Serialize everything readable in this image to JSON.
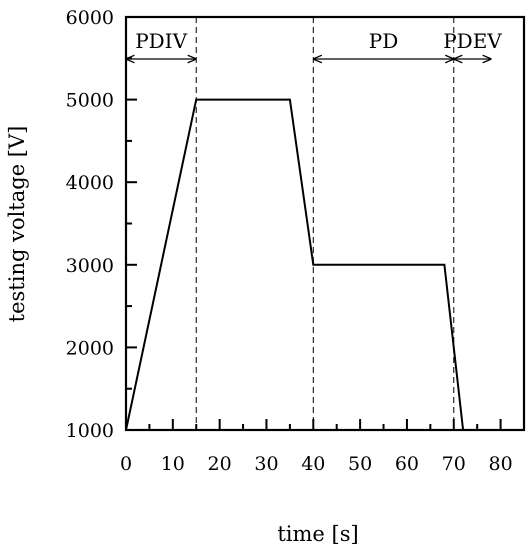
{
  "chart_data": {
    "type": "line",
    "xlabel": "time [s]",
    "ylabel": "testing voltage [V]",
    "xlim": [
      0,
      85
    ],
    "ylim": [
      1000,
      6000
    ],
    "x_major_ticks": [
      0,
      10,
      20,
      30,
      40,
      50,
      60,
      70,
      80
    ],
    "x_minor_ticks": [
      5,
      15,
      25,
      35,
      45,
      55,
      65,
      75
    ],
    "y_major_ticks": [
      1000,
      2000,
      3000,
      4000,
      5000,
      6000
    ],
    "y_minor_ticks": [
      1500,
      2500,
      3500,
      4500,
      5500
    ],
    "x_tick_labels": [
      "0",
      "10",
      "20",
      "30",
      "40",
      "50",
      "60",
      "70",
      "80"
    ],
    "y_tick_labels": [
      "1000",
      "2000",
      "3000",
      "4000",
      "5000",
      "6000"
    ],
    "series": [
      {
        "x": [
          0,
          15,
          35,
          40,
          68,
          72
        ],
        "y": [
          1000,
          5000,
          5000,
          3000,
          3000,
          1000
        ],
        "color": "#000000"
      }
    ],
    "vertical_lines": [
      15,
      40,
      70
    ],
    "phases": [
      {
        "label": "PDIV",
        "start": 0,
        "end": 15
      },
      {
        "label": "PD",
        "start": 40,
        "end": 70
      },
      {
        "label": "PDEV",
        "start": 70,
        "end": 78
      }
    ]
  }
}
